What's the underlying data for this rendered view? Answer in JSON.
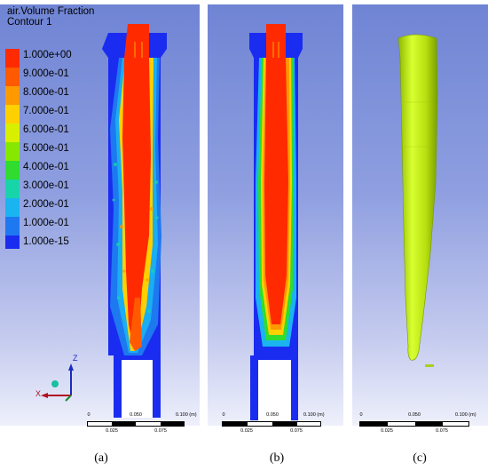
{
  "legend": {
    "title": "air.Volume Fraction",
    "subtitle": "Contour 1",
    "levels": [
      "1.000e+00",
      "9.000e-01",
      "8.000e-01",
      "7.000e-01",
      "6.000e-01",
      "5.000e-01",
      "4.000e-01",
      "3.000e-01",
      "2.000e-01",
      "1.000e-01",
      "1.000e-15"
    ],
    "colors": [
      "#ff2a00",
      "#ff5a00",
      "#ff9900",
      "#ffd000",
      "#d8f000",
      "#86e800",
      "#2fdc2f",
      "#17d5a8",
      "#1ab4f0",
      "#1e78f0",
      "#1a2cf0"
    ]
  },
  "axes": {
    "z": "Z",
    "x": "X"
  },
  "scalebars": [
    {
      "top_labels": [
        "0",
        "0.050",
        "0.100 (m)"
      ],
      "bottom_labels": [
        "0.025",
        "0.075"
      ]
    },
    {
      "top_labels": [
        "0",
        "0.050",
        "0.100 (m)"
      ],
      "bottom_labels": [
        "0.025",
        "0.075"
      ]
    },
    {
      "top_labels": [
        "0",
        "0.050",
        "0.100 (m)"
      ],
      "bottom_labels": [
        "0.025",
        "0.075"
      ]
    }
  ],
  "captions": [
    "(a)",
    "(b)",
    "(c)"
  ],
  "colors": {
    "liquid": "#1a2cf0",
    "air": "#ff2a00",
    "isosurface": "#c8f020",
    "background_top": "#6f84d4"
  }
}
